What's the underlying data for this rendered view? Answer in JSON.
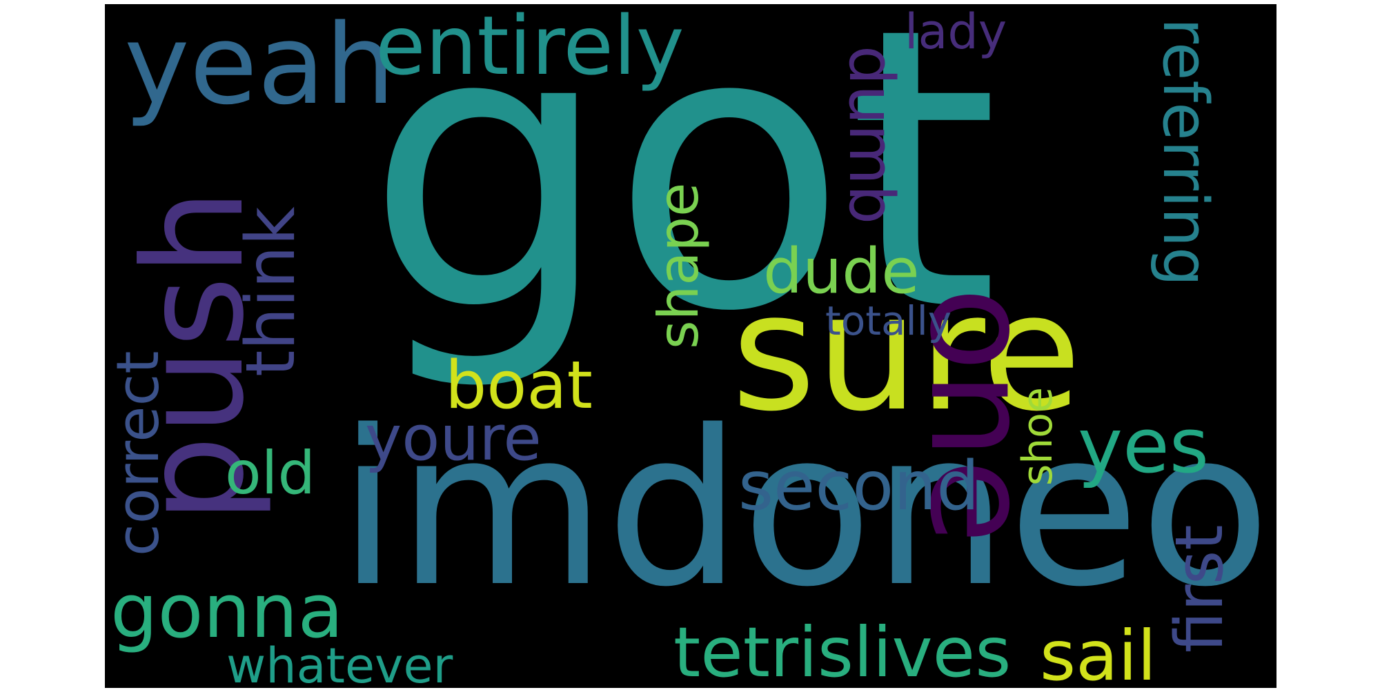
{
  "words": [
    {
      "text": "got",
      "color": "#21918c"
    },
    {
      "text": "imdoneok",
      "color": "#2c728e"
    },
    {
      "text": "push",
      "color": "#46327e"
    },
    {
      "text": "sure",
      "color": "#c8e020"
    },
    {
      "text": "one",
      "color": "#440154"
    },
    {
      "text": "yeah",
      "color": "#31688e"
    },
    {
      "text": "entirely",
      "color": "#21918c"
    },
    {
      "text": "think",
      "color": "#414487"
    },
    {
      "text": "dumb",
      "color": "#482878"
    },
    {
      "text": "referring",
      "color": "#26828e"
    },
    {
      "text": "shape",
      "color": "#7ad151"
    },
    {
      "text": "dude",
      "color": "#7ad151"
    },
    {
      "text": "totally",
      "color": "#3b528b"
    },
    {
      "text": "boat",
      "color": "#d2e21b"
    },
    {
      "text": "youre",
      "color": "#3e4989"
    },
    {
      "text": "yes",
      "color": "#22a884"
    },
    {
      "text": "correct",
      "color": "#3b528b"
    },
    {
      "text": "old",
      "color": "#35b779"
    },
    {
      "text": "second",
      "color": "#33638d"
    },
    {
      "text": "shoe",
      "color": "#a0da39"
    },
    {
      "text": "first",
      "color": "#3e4989"
    },
    {
      "text": "gonna",
      "color": "#29af7f"
    },
    {
      "text": "tetrislives",
      "color": "#29af7f"
    },
    {
      "text": "sail",
      "color": "#d2e21b"
    },
    {
      "text": "whatever",
      "color": "#1f9e89"
    },
    {
      "text": "lady",
      "color": "#472d7b"
    }
  ]
}
